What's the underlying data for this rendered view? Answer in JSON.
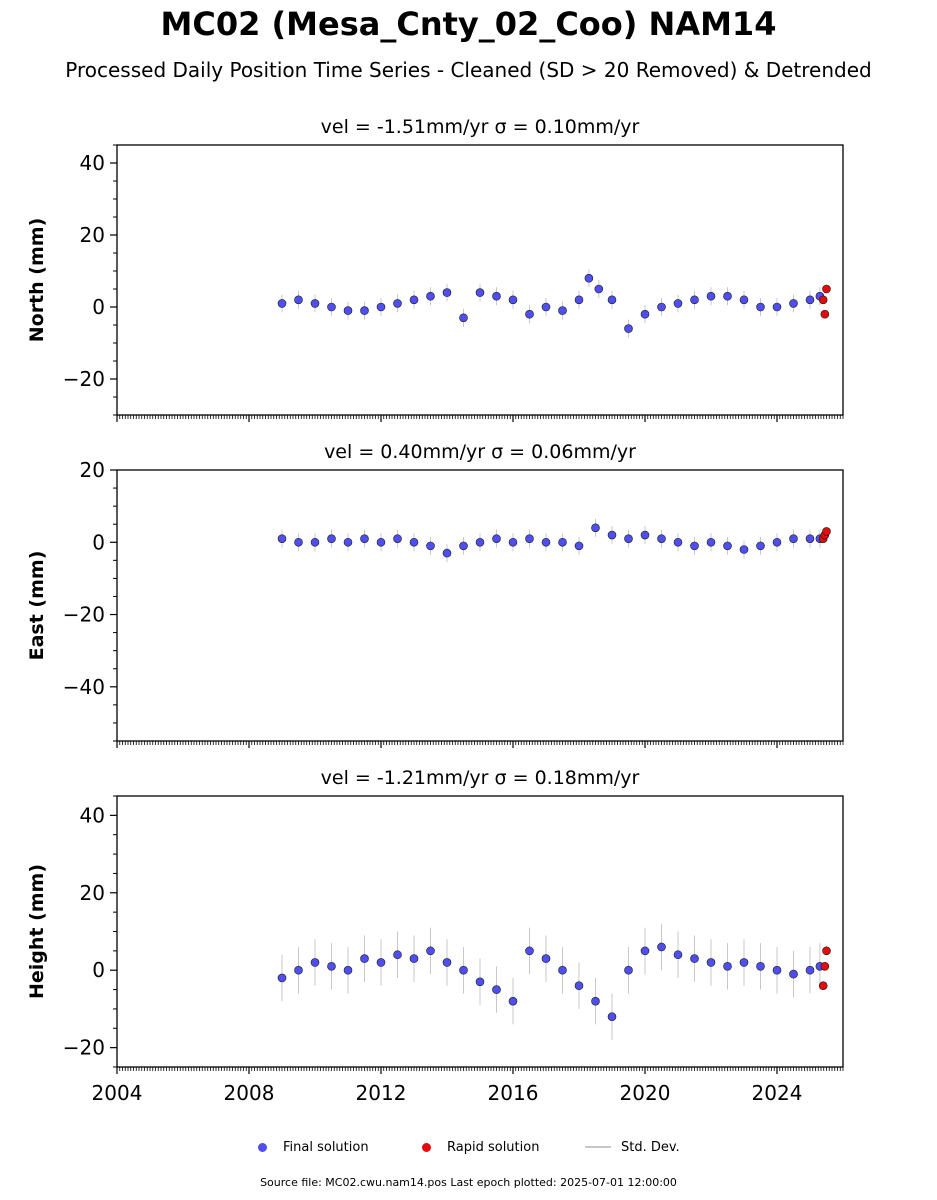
{
  "figure": {
    "title": "MC02 (Mesa_Cnty_02_Coo) NAM14",
    "subtitle": "Processed Daily Position Time Series - Cleaned (SD > 20 Removed) & Detrended",
    "footer": "Source file: MC02.cwu.nam14.pos  Last epoch plotted: 2025-07-01 12:00:00"
  },
  "legend": {
    "final": "Final solution",
    "rapid": "Rapid solution",
    "std": "Std. Dev."
  },
  "colors": {
    "final": "#4f4ff0",
    "rapid": "#e30b0b",
    "std": "#c8c8c8",
    "marker_edge": "#1a1a1a"
  },
  "chart_data": [
    {
      "type": "scatter",
      "title": "vel = -1.51mm/yr   σ = 0.10mm/yr",
      "ylabel": "North (mm)",
      "xlim": [
        2004.0,
        2026.0
      ],
      "ylim": [
        -30,
        45
      ],
      "yticks": [
        -20,
        0,
        20,
        40
      ],
      "xticks": [
        2004,
        2008,
        2012,
        2016,
        2020,
        2024
      ],
      "series": [
        {
          "role": "final",
          "x": [
            2009.0,
            2009.5,
            2010.0,
            2010.5,
            2011.0,
            2011.5,
            2012.0,
            2012.5,
            2013.0,
            2013.5,
            2014.0,
            2014.5,
            2015.0,
            2015.5,
            2016.0,
            2016.5,
            2017.0,
            2017.5,
            2018.0,
            2018.3,
            2018.6,
            2019.0,
            2019.5,
            2020.0,
            2020.5,
            2021.0,
            2021.5,
            2022.0,
            2022.5,
            2023.0,
            2023.5,
            2024.0,
            2024.5,
            2025.0,
            2025.3
          ],
          "y": [
            1,
            2,
            1,
            0,
            -1,
            -1,
            0,
            1,
            2,
            3,
            4,
            -3,
            4,
            3,
            2,
            -2,
            0,
            -1,
            2,
            8,
            5,
            2,
            -6,
            -2,
            0,
            1,
            2,
            3,
            3,
            2,
            0,
            0,
            1,
            2,
            3
          ]
        },
        {
          "role": "rapid",
          "x": [
            2025.4,
            2025.45,
            2025.5
          ],
          "y": [
            2,
            -2,
            5
          ]
        }
      ]
    },
    {
      "type": "scatter",
      "title": "vel = 0.40mm/yr   σ = 0.06mm/yr",
      "ylabel": "East (mm)",
      "xlim": [
        2004.0,
        2026.0
      ],
      "ylim": [
        -55,
        20
      ],
      "yticks": [
        -40,
        -20,
        0,
        20
      ],
      "xticks": [
        2004,
        2008,
        2012,
        2016,
        2020,
        2024
      ],
      "series": [
        {
          "role": "final",
          "x": [
            2009.0,
            2009.5,
            2010.0,
            2010.5,
            2011.0,
            2011.5,
            2012.0,
            2012.5,
            2013.0,
            2013.5,
            2014.0,
            2014.5,
            2015.0,
            2015.5,
            2016.0,
            2016.5,
            2017.0,
            2017.5,
            2018.0,
            2018.5,
            2019.0,
            2019.5,
            2020.0,
            2020.5,
            2021.0,
            2021.5,
            2022.0,
            2022.5,
            2023.0,
            2023.5,
            2024.0,
            2024.5,
            2025.0,
            2025.3
          ],
          "y": [
            1,
            0,
            0,
            1,
            0,
            1,
            0,
            1,
            0,
            -1,
            -3,
            -1,
            0,
            1,
            0,
            1,
            0,
            0,
            -1,
            4,
            2,
            1,
            2,
            1,
            0,
            -1,
            0,
            -1,
            -2,
            -1,
            0,
            1,
            1,
            1
          ]
        },
        {
          "role": "rapid",
          "x": [
            2025.4,
            2025.45,
            2025.5
          ],
          "y": [
            1,
            2,
            3
          ]
        }
      ]
    },
    {
      "type": "scatter",
      "title": "vel = -1.21mm/yr   σ = 0.18mm/yr",
      "ylabel": "Height (mm)",
      "xlim": [
        2004.0,
        2026.0
      ],
      "ylim": [
        -25,
        45
      ],
      "yticks": [
        -20,
        0,
        20,
        40
      ],
      "xticks": [
        2004,
        2008,
        2012,
        2016,
        2020,
        2024
      ],
      "series": [
        {
          "role": "final",
          "x": [
            2009.0,
            2009.5,
            2010.0,
            2010.5,
            2011.0,
            2011.5,
            2012.0,
            2012.5,
            2013.0,
            2013.5,
            2014.0,
            2014.5,
            2015.0,
            2015.5,
            2016.0,
            2016.5,
            2017.0,
            2017.5,
            2018.0,
            2018.5,
            2019.0,
            2019.5,
            2020.0,
            2020.5,
            2021.0,
            2021.5,
            2022.0,
            2022.5,
            2023.0,
            2023.5,
            2024.0,
            2024.5,
            2025.0,
            2025.3
          ],
          "y": [
            -2,
            0,
            2,
            1,
            0,
            3,
            2,
            4,
            3,
            5,
            2,
            0,
            -3,
            -5,
            -8,
            5,
            3,
            0,
            -4,
            -8,
            -12,
            0,
            5,
            6,
            4,
            3,
            2,
            1,
            2,
            1,
            0,
            -1,
            0,
            1
          ]
        },
        {
          "role": "rapid",
          "x": [
            2025.4,
            2025.45,
            2025.5
          ],
          "y": [
            -4,
            1,
            5
          ]
        }
      ]
    }
  ]
}
